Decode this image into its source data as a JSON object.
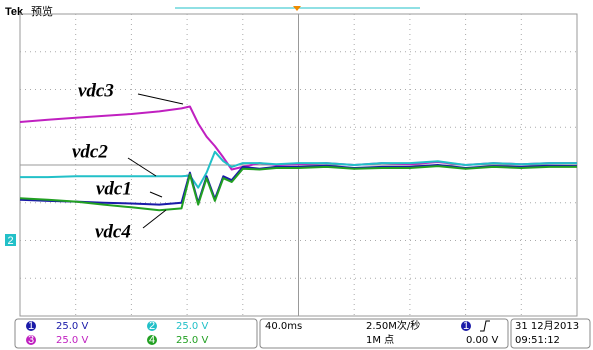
{
  "screen": {
    "brand": "Tek",
    "mode": "预览",
    "ground_marker": "2",
    "channels": [
      {
        "id": "1",
        "scale": "25.0 V"
      },
      {
        "id": "2",
        "scale": "25.0 V"
      },
      {
        "id": "3",
        "scale": "25.0 V"
      },
      {
        "id": "4",
        "scale": "25.0 V"
      }
    ],
    "timebase": "40.0ms",
    "sample_rate": "2.50M次/秒",
    "record_length": "1M 点",
    "trigger_channel": "1",
    "trigger_level": "0.00 V",
    "date": "31 12月2013",
    "time": "09:51:12"
  },
  "chart_data": {
    "type": "line",
    "grid": true,
    "xlim": [
      0,
      10
    ],
    "ylim": [
      -4,
      4
    ],
    "x": [
      0,
      0.5,
      1,
      1.5,
      2,
      2.5,
      2.9,
      3.05,
      3.2,
      3.35,
      3.5,
      3.65,
      3.8,
      4.0,
      4.3,
      4.6,
      5,
      5.5,
      6,
      6.5,
      7,
      7.5,
      8,
      8.5,
      9,
      9.5,
      10
    ],
    "series": [
      {
        "name": "vdc3",
        "color": "#c020c0",
        "values": [
          1.14,
          1.2,
          1.25,
          1.3,
          1.35,
          1.42,
          1.5,
          1.55,
          1.1,
          0.75,
          0.5,
          0.2,
          -0.12,
          -0.05,
          0.05,
          0.0,
          0.02,
          0.05,
          0.0,
          0.05,
          0.02,
          0.08,
          0.0,
          0.05,
          0.02,
          0.05,
          0.05
        ]
      },
      {
        "name": "vdc2",
        "color": "#22c0c8",
        "values": [
          -0.32,
          -0.32,
          -0.3,
          -0.3,
          -0.3,
          -0.3,
          -0.3,
          -0.28,
          -0.6,
          -0.2,
          0.35,
          0.1,
          -0.05,
          0.05,
          0.05,
          0.02,
          0.05,
          0.05,
          0.0,
          0.05,
          0.05,
          0.1,
          0.0,
          0.05,
          0.02,
          0.05,
          0.05
        ]
      },
      {
        "name": "vdc1",
        "color": "#1a1aa8",
        "values": [
          -0.92,
          -0.95,
          -0.97,
          -1.0,
          -1.02,
          -1.05,
          -1.0,
          -0.2,
          -1.0,
          -0.3,
          -0.9,
          -0.3,
          -0.4,
          -0.05,
          -0.1,
          -0.05,
          -0.05,
          -0.02,
          -0.08,
          -0.05,
          -0.05,
          0.0,
          -0.08,
          -0.03,
          -0.05,
          -0.02,
          -0.03
        ]
      },
      {
        "name": "vdc4",
        "color": "#22a022",
        "values": [
          -0.88,
          -0.92,
          -0.97,
          -1.05,
          -1.12,
          -1.2,
          -1.15,
          -0.25,
          -1.05,
          -0.35,
          -0.95,
          -0.35,
          -0.45,
          -0.1,
          -0.12,
          -0.08,
          -0.08,
          -0.05,
          -0.1,
          -0.08,
          -0.08,
          -0.03,
          -0.1,
          -0.05,
          -0.08,
          -0.05,
          -0.05
        ]
      }
    ]
  }
}
